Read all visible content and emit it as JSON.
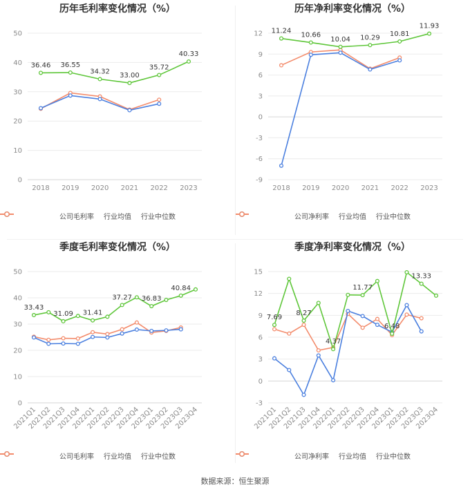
{
  "page": {
    "source": "数据来源：恒生聚源"
  },
  "colors": {
    "company": "#5ec639",
    "industry_avg": "#4a7fdf",
    "industry_median": "#f38b6b",
    "grid": "#ebebeb",
    "axis_text": "#8a8a8a",
    "label_text": "#333333"
  },
  "legend": {
    "annual_gross": [
      "公司毛利率",
      "行业均值",
      "行业中位数"
    ],
    "annual_net": [
      "公司净利率",
      "行业均值",
      "行业中位数"
    ],
    "quarter_gross": [
      "公司毛利率",
      "行业均值",
      "行业中位数"
    ],
    "quarter_net": [
      "公司净利率",
      "行业均值",
      "行业中位数"
    ]
  },
  "chart_data": [
    {
      "id": "annual_gross",
      "type": "line",
      "title": "历年毛利率变化情况（%）",
      "categories": [
        "2018",
        "2019",
        "2020",
        "2021",
        "2022",
        "2023"
      ],
      "yticks": [
        0,
        10,
        20,
        30,
        40,
        50
      ],
      "ylim": [
        0,
        50
      ],
      "rotate": false,
      "series": [
        {
          "name": "公司毛利率",
          "values": [
            36.46,
            36.55,
            34.32,
            33.0,
            35.72,
            40.33
          ]
        },
        {
          "name": "行业均值",
          "values": [
            24.4,
            28.7,
            27.5,
            23.7,
            25.9,
            null
          ]
        },
        {
          "name": "行业中位数",
          "values": [
            24.2,
            29.6,
            28.4,
            23.9,
            27.3,
            null
          ]
        }
      ],
      "labels": [
        {
          "text": "36.46",
          "index": 0
        },
        {
          "text": "36.55",
          "index": 1
        },
        {
          "text": "34.32",
          "index": 2
        },
        {
          "text": "33.00",
          "index": 3
        },
        {
          "text": "35.72",
          "index": 4
        },
        {
          "text": "40.33",
          "index": 5
        }
      ]
    },
    {
      "id": "annual_net",
      "type": "line",
      "title": "历年净利率变化情况（%）",
      "categories": [
        "2018",
        "2019",
        "2020",
        "2021",
        "2022",
        "2023"
      ],
      "yticks": [
        -9,
        -6,
        -3,
        0,
        3,
        6,
        9,
        12
      ],
      "ylim": [
        -9,
        12
      ],
      "rotate": false,
      "series": [
        {
          "name": "公司净利率",
          "values": [
            11.24,
            10.66,
            10.04,
            10.29,
            10.81,
            11.93
          ]
        },
        {
          "name": "行业均值",
          "values": [
            -7.0,
            8.9,
            9.2,
            6.8,
            8.1,
            null
          ]
        },
        {
          "name": "行业中位数",
          "values": [
            7.4,
            9.3,
            9.6,
            6.9,
            8.5,
            null
          ]
        }
      ],
      "labels": [
        {
          "text": "11.24",
          "index": 0
        },
        {
          "text": "10.66",
          "index": 1
        },
        {
          "text": "10.04",
          "index": 2
        },
        {
          "text": "10.29",
          "index": 3
        },
        {
          "text": "10.81",
          "index": 4
        },
        {
          "text": "11.93",
          "index": 5
        }
      ]
    },
    {
      "id": "quarter_gross",
      "type": "line",
      "title": "季度毛利率变化情况（%）",
      "categories": [
        "2021Q1",
        "2021Q2",
        "2021Q3",
        "2021Q4",
        "2022Q1",
        "2022Q2",
        "2022Q3",
        "2022Q4",
        "2023Q1",
        "2023Q2",
        "2023Q3",
        "2023Q4"
      ],
      "yticks": [
        0,
        10,
        20,
        30,
        40,
        50
      ],
      "ylim": [
        0,
        50
      ],
      "rotate": true,
      "series": [
        {
          "name": "公司毛利率",
          "values": [
            33.43,
            34.5,
            31.09,
            33.1,
            31.41,
            32.8,
            37.27,
            40.2,
            36.83,
            39.2,
            40.84,
            43.2
          ]
        },
        {
          "name": "行业均值",
          "values": [
            24.9,
            22.5,
            22.6,
            22.5,
            25.1,
            24.9,
            26.4,
            27.9,
            27.4,
            27.6,
            28.0,
            null
          ]
        },
        {
          "name": "行业中位数",
          "values": [
            25.2,
            24.0,
            24.6,
            24.5,
            26.9,
            26.2,
            28.0,
            30.6,
            26.8,
            27.4,
            28.7,
            null
          ]
        }
      ],
      "labels": [
        {
          "text": "33.43",
          "index": 0
        },
        {
          "text": "31.09",
          "index": 2
        },
        {
          "text": "31.41",
          "index": 4
        },
        {
          "text": "37.27",
          "index": 6
        },
        {
          "text": "36.83",
          "index": 8
        },
        {
          "text": "40.84",
          "index": 10
        }
      ]
    },
    {
      "id": "quarter_net",
      "type": "line",
      "title": "季度净利率变化情况（%）",
      "categories": [
        "2021Q1",
        "2021Q2",
        "2021Q3",
        "2021Q4",
        "2022Q1",
        "2022Q2",
        "2022Q3",
        "2022Q4",
        "2023Q1",
        "2023Q2",
        "2023Q3",
        "2023Q4"
      ],
      "yticks": [
        -3,
        0,
        3,
        6,
        9,
        12,
        15
      ],
      "ylim": [
        -3,
        15
      ],
      "rotate": true,
      "series": [
        {
          "name": "公司净利率",
          "values": [
            7.69,
            14.0,
            8.27,
            10.7,
            4.37,
            11.8,
            11.77,
            13.7,
            6.48,
            14.9,
            13.33,
            11.7
          ]
        },
        {
          "name": "行业均值",
          "values": [
            3.1,
            1.5,
            -1.9,
            3.5,
            0.1,
            9.6,
            8.9,
            7.7,
            6.7,
            10.4,
            6.8,
            null
          ]
        },
        {
          "name": "行业中位数",
          "values": [
            7.1,
            6.5,
            7.7,
            4.2,
            4.6,
            9.2,
            7.3,
            8.5,
            6.3,
            9.1,
            8.6,
            null
          ]
        }
      ],
      "labels": [
        {
          "text": "7.69",
          "index": 0
        },
        {
          "text": "8.27",
          "index": 2
        },
        {
          "text": "4.37",
          "index": 4
        },
        {
          "text": "11.77",
          "index": 6
        },
        {
          "text": "6.48",
          "index": 8
        },
        {
          "text": "13.33",
          "index": 10
        }
      ]
    }
  ]
}
